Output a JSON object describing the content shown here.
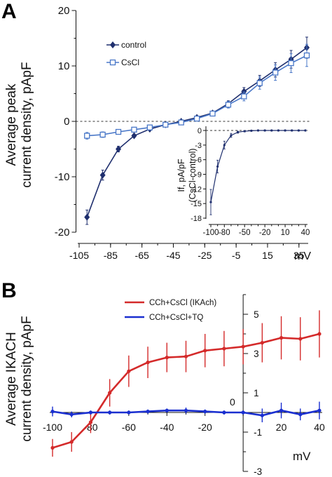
{
  "chart_data": [
    {
      "panel": "A",
      "type": "line",
      "ylabel_lines": [
        "Average peak",
        "current density, pApF"
      ],
      "xunit": "mV",
      "xlim": [
        -105,
        42
      ],
      "ylim": [
        -20,
        20
      ],
      "xticks": [
        -105,
        -85,
        -65,
        -45,
        -25,
        -5,
        15,
        35
      ],
      "xtick_labels": [
        "-105",
        "-85",
        "-65",
        "-45",
        "-25",
        "-5",
        "15",
        "35"
      ],
      "yticks": [
        -20,
        -10,
        0,
        10,
        20
      ],
      "ytick_labels": [
        "-20",
        "-10",
        "0",
        "10",
        "20"
      ],
      "legend_position": "top-left",
      "series": [
        {
          "name": "control",
          "color": "#1f2f6e",
          "marker": "filled-diamond",
          "x": [
            -100,
            -90,
            -80,
            -70,
            -60,
            -50,
            -40,
            -30,
            -20,
            -10,
            0,
            10,
            20,
            30,
            40
          ],
          "y": [
            -17.3,
            -9.7,
            -5.0,
            -2.6,
            -1.4,
            -0.6,
            0.0,
            0.7,
            1.5,
            3.2,
            5.4,
            7.3,
            9.3,
            11.2,
            13.3
          ],
          "err": [
            1.3,
            0.9,
            0.5,
            0.3,
            0.2,
            0.2,
            0.1,
            0.2,
            0.3,
            0.5,
            0.7,
            1.0,
            1.3,
            1.6,
            1.9
          ]
        },
        {
          "name": "CsCl",
          "color": "#4a78c8",
          "marker": "open-square",
          "x": [
            -100,
            -90,
            -80,
            -70,
            -60,
            -50,
            -40,
            -30,
            -20,
            -10,
            0,
            10,
            20,
            30,
            40
          ],
          "y": [
            -2.6,
            -2.4,
            -1.9,
            -1.5,
            -1.1,
            -0.6,
            -0.2,
            0.5,
            1.4,
            3.0,
            4.5,
            6.9,
            8.8,
            10.5,
            11.9
          ],
          "err": [
            0.6,
            0.5,
            0.4,
            0.3,
            0.2,
            0.2,
            0.1,
            0.2,
            0.4,
            0.6,
            0.8,
            1.1,
            1.4,
            1.7,
            2.0
          ]
        }
      ],
      "inset": {
        "type": "line",
        "ylabel_lines": [
          "If, pA/pF",
          "(CsCl-control)"
        ],
        "xlim": [
          -100,
          40
        ],
        "ylim": [
          -18,
          0
        ],
        "xticks": [
          -100,
          -80,
          -50,
          -20,
          10,
          40
        ],
        "xtick_labels": [
          "-100",
          "-80",
          "-50",
          "-20",
          "10",
          "40"
        ],
        "xtick_minor": [
          -90,
          -70,
          -60,
          -40,
          -30,
          -10,
          0,
          20,
          30
        ],
        "yticks": [
          0,
          -3,
          -6,
          -9,
          -12,
          -15,
          -18
        ],
        "ytick_labels": [
          "0",
          "-3",
          "-6",
          "-9",
          "-12",
          "-15",
          "-18"
        ],
        "color": "#1f2f6e",
        "x": [
          -100,
          -90,
          -80,
          -70,
          -60,
          -50,
          -40,
          -30,
          -20,
          -10,
          0,
          10,
          20,
          30,
          40
        ],
        "y": [
          -14.7,
          -7.4,
          -3.0,
          -1.0,
          -0.35,
          -0.15,
          -0.05,
          0.0,
          0.0,
          0.0,
          0.0,
          0.0,
          0.0,
          0.0,
          0.0
        ],
        "err": [
          2.6,
          1.3,
          0.8,
          0.4,
          0.2,
          0.15,
          0.1,
          0.1,
          0.1,
          0.1,
          0.1,
          0.1,
          0.1,
          0.1,
          0.1
        ]
      }
    },
    {
      "panel": "B",
      "type": "line",
      "ylabel_lines": [
        "Average IKACH",
        "current density, pApF"
      ],
      "xunit": "mV",
      "xlim": [
        -102,
        42
      ],
      "ylim": [
        -3,
        6
      ],
      "xticks": [
        -100,
        -80,
        -60,
        -40,
        -20,
        0,
        20,
        40
      ],
      "xtick_labels": [
        "-100",
        "-80",
        "-60",
        "-40",
        "-20",
        "",
        "20",
        "40"
      ],
      "yticks": [
        5,
        3,
        1,
        -1,
        -3
      ],
      "ytick_labels": [
        "5",
        "3",
        "1",
        "-1",
        "-3"
      ],
      "ytick_minor": [
        6,
        4,
        2,
        -2
      ],
      "origin_label": "0",
      "legend_position": "top-left",
      "series": [
        {
          "name": "CCh+CsCl (IKAch)",
          "color": "#d42a2a",
          "x": [
            -100,
            -90,
            -80,
            -70,
            -60,
            -50,
            -40,
            -30,
            -20,
            -10,
            0,
            10,
            20,
            30,
            40
          ],
          "y": [
            -1.8,
            -1.5,
            -0.5,
            1.0,
            2.1,
            2.55,
            2.8,
            2.85,
            3.15,
            3.25,
            3.35,
            3.55,
            3.8,
            3.75,
            4.0
          ],
          "err": [
            0.45,
            0.5,
            0.55,
            0.7,
            0.8,
            0.8,
            0.75,
            0.8,
            0.85,
            0.9,
            0.9,
            1.0,
            1.1,
            1.1,
            1.2
          ]
        },
        {
          "name": "CCh+CsCl+TQ",
          "color": "#1a2fd0",
          "x": [
            -100,
            -90,
            -80,
            -70,
            -60,
            -50,
            -40,
            -30,
            -20,
            -10,
            0,
            10,
            20,
            30,
            40
          ],
          "y": [
            0.05,
            -0.1,
            0.0,
            0.0,
            0.0,
            0.05,
            0.1,
            0.1,
            0.05,
            0.0,
            0.0,
            -0.15,
            0.1,
            -0.1,
            0.1
          ],
          "err": [
            0.25,
            0.15,
            0.1,
            0.1,
            0.1,
            0.1,
            0.1,
            0.15,
            0.1,
            0.1,
            0.1,
            0.35,
            0.4,
            0.3,
            0.45
          ]
        }
      ]
    }
  ]
}
